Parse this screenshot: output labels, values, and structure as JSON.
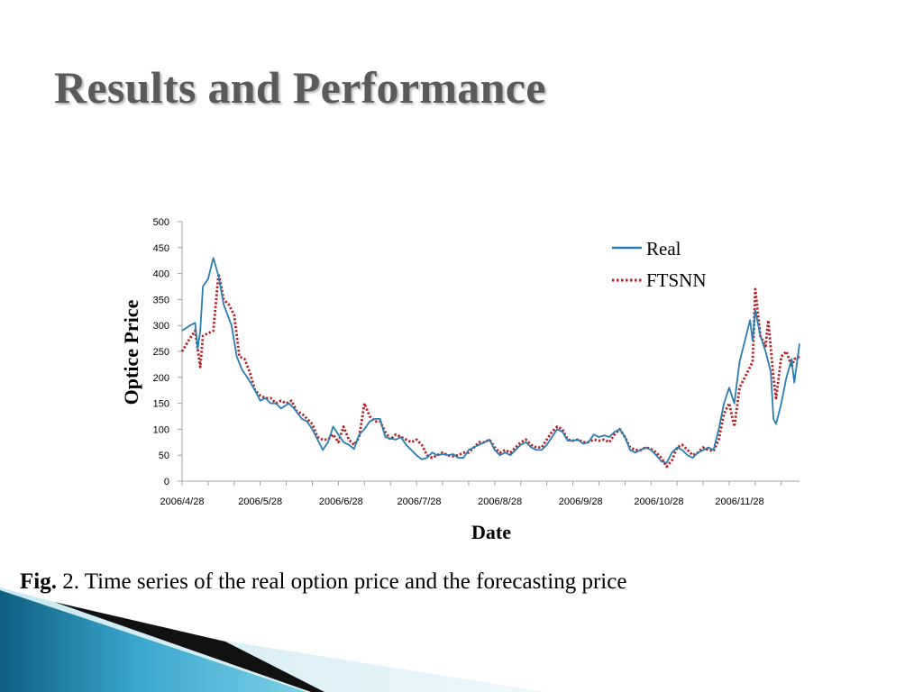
{
  "slide": {
    "title": "Results and Performance",
    "caption": {
      "fig_label": "Fig.",
      "fig_number": " 2.",
      "text": " Time series of the real option price and the forecasting price"
    }
  },
  "colors": {
    "real": "#2a7db0",
    "ftsnn": "#b01e24",
    "title": "#5a5a5a",
    "deco_dark": "#0f6f92",
    "deco_light": "#5cc0dc"
  },
  "chart_data": {
    "type": "line",
    "xlabel": "Date",
    "ylabel": "Optice Price",
    "ylim": [
      0,
      500
    ],
    "yticks": [
      0,
      50,
      100,
      150,
      200,
      250,
      300,
      350,
      400,
      450,
      500
    ],
    "xlim": [
      "2006-04-28",
      "2006-12-21"
    ],
    "x_tick_labels": [
      {
        "label": "2006/4/28",
        "date": "2006-04-28"
      },
      {
        "label": "2006/5/28",
        "date": "2006-05-28"
      },
      {
        "label": "2006/6/28",
        "date": "2006-06-28"
      },
      {
        "label": "2006/7/28",
        "date": "2006-07-28"
      },
      {
        "label": "2006/8/28",
        "date": "2006-08-28"
      },
      {
        "label": "2006/9/28",
        "date": "2006-09-28"
      },
      {
        "label": "2006/10/28",
        "date": "2006-10-28"
      },
      {
        "label": "2006/11/28",
        "date": "2006-11-28"
      }
    ],
    "legend_position": "top-right",
    "grid": false,
    "series": [
      {
        "name": "Real",
        "style": "solid",
        "points": [
          [
            "2006-04-28",
            290
          ],
          [
            "2006-05-01",
            300
          ],
          [
            "2006-05-03",
            305
          ],
          [
            "2006-05-04",
            255
          ],
          [
            "2006-05-05",
            290
          ],
          [
            "2006-05-06",
            375
          ],
          [
            "2006-05-08",
            390
          ],
          [
            "2006-05-10",
            430
          ],
          [
            "2006-05-12",
            395
          ],
          [
            "2006-05-14",
            340
          ],
          [
            "2006-05-17",
            300
          ],
          [
            "2006-05-19",
            240
          ],
          [
            "2006-05-21",
            215
          ],
          [
            "2006-05-23",
            200
          ],
          [
            "2006-05-26",
            175
          ],
          [
            "2006-05-28",
            155
          ],
          [
            "2006-05-30",
            160
          ],
          [
            "2006-06-01",
            150
          ],
          [
            "2006-06-03",
            150
          ],
          [
            "2006-06-05",
            140
          ],
          [
            "2006-06-08",
            150
          ],
          [
            "2006-06-10",
            140
          ],
          [
            "2006-06-13",
            120
          ],
          [
            "2006-06-15",
            115
          ],
          [
            "2006-06-17",
            100
          ],
          [
            "2006-06-19",
            80
          ],
          [
            "2006-06-21",
            60
          ],
          [
            "2006-06-23",
            75
          ],
          [
            "2006-06-25",
            105
          ],
          [
            "2006-06-27",
            90
          ],
          [
            "2006-06-29",
            75
          ],
          [
            "2006-07-01",
            70
          ],
          [
            "2006-07-03",
            62
          ],
          [
            "2006-07-05",
            90
          ],
          [
            "2006-07-07",
            100
          ],
          [
            "2006-07-09",
            115
          ],
          [
            "2006-07-11",
            120
          ],
          [
            "2006-07-13",
            120
          ],
          [
            "2006-07-15",
            85
          ],
          [
            "2006-07-17",
            82
          ],
          [
            "2006-07-19",
            80
          ],
          [
            "2006-07-21",
            85
          ],
          [
            "2006-07-23",
            70
          ],
          [
            "2006-07-25",
            60
          ],
          [
            "2006-07-27",
            50
          ],
          [
            "2006-07-29",
            42
          ],
          [
            "2006-07-31",
            45
          ],
          [
            "2006-08-02",
            55
          ],
          [
            "2006-08-04",
            50
          ],
          [
            "2006-08-06",
            52
          ],
          [
            "2006-08-08",
            50
          ],
          [
            "2006-08-10",
            52
          ],
          [
            "2006-08-12",
            45
          ],
          [
            "2006-08-14",
            45
          ],
          [
            "2006-08-16",
            60
          ],
          [
            "2006-08-18",
            65
          ],
          [
            "2006-08-20",
            70
          ],
          [
            "2006-08-22",
            75
          ],
          [
            "2006-08-24",
            80
          ],
          [
            "2006-08-26",
            60
          ],
          [
            "2006-08-28",
            50
          ],
          [
            "2006-08-30",
            55
          ],
          [
            "2006-09-01",
            50
          ],
          [
            "2006-09-03",
            60
          ],
          [
            "2006-09-05",
            70
          ],
          [
            "2006-09-07",
            75
          ],
          [
            "2006-09-09",
            65
          ],
          [
            "2006-09-11",
            60
          ],
          [
            "2006-09-13",
            60
          ],
          [
            "2006-09-15",
            70
          ],
          [
            "2006-09-17",
            85
          ],
          [
            "2006-09-19",
            100
          ],
          [
            "2006-09-21",
            95
          ],
          [
            "2006-09-23",
            78
          ],
          [
            "2006-09-25",
            78
          ],
          [
            "2006-09-27",
            80
          ],
          [
            "2006-09-29",
            72
          ],
          [
            "2006-10-01",
            75
          ],
          [
            "2006-10-03",
            90
          ],
          [
            "2006-10-05",
            85
          ],
          [
            "2006-10-07",
            88
          ],
          [
            "2006-10-09",
            85
          ],
          [
            "2006-10-11",
            95
          ],
          [
            "2006-10-13",
            100
          ],
          [
            "2006-10-15",
            85
          ],
          [
            "2006-10-17",
            60
          ],
          [
            "2006-10-19",
            55
          ],
          [
            "2006-10-21",
            60
          ],
          [
            "2006-10-23",
            65
          ],
          [
            "2006-10-25",
            60
          ],
          [
            "2006-10-27",
            50
          ],
          [
            "2006-10-29",
            38
          ],
          [
            "2006-10-31",
            35
          ],
          [
            "2006-11-02",
            55
          ],
          [
            "2006-11-04",
            65
          ],
          [
            "2006-11-06",
            60
          ],
          [
            "2006-11-08",
            50
          ],
          [
            "2006-11-10",
            45
          ],
          [
            "2006-11-12",
            55
          ],
          [
            "2006-11-14",
            60
          ],
          [
            "2006-11-16",
            65
          ],
          [
            "2006-11-18",
            60
          ],
          [
            "2006-11-20",
            100
          ],
          [
            "2006-11-22",
            150
          ],
          [
            "2006-11-24",
            180
          ],
          [
            "2006-11-26",
            150
          ],
          [
            "2006-11-28",
            230
          ],
          [
            "2006-11-30",
            270
          ],
          [
            "2006-12-02",
            310
          ],
          [
            "2006-12-03",
            270
          ],
          [
            "2006-12-04",
            330
          ],
          [
            "2006-12-06",
            280
          ],
          [
            "2006-12-08",
            250
          ],
          [
            "2006-12-10",
            210
          ],
          [
            "2006-12-11",
            120
          ],
          [
            "2006-12-12",
            110
          ],
          [
            "2006-12-14",
            150
          ],
          [
            "2006-12-16",
            200
          ],
          [
            "2006-12-18",
            235
          ],
          [
            "2006-12-19",
            190
          ],
          [
            "2006-12-21",
            265
          ]
        ]
      },
      {
        "name": "FTSNN",
        "style": "dotted",
        "points": [
          [
            "2006-04-28",
            250
          ],
          [
            "2006-05-01",
            275
          ],
          [
            "2006-05-03",
            290
          ],
          [
            "2006-05-05",
            220
          ],
          [
            "2006-05-06",
            280
          ],
          [
            "2006-05-08",
            285
          ],
          [
            "2006-05-10",
            290
          ],
          [
            "2006-05-12",
            400
          ],
          [
            "2006-05-14",
            350
          ],
          [
            "2006-05-16",
            340
          ],
          [
            "2006-05-18",
            320
          ],
          [
            "2006-05-20",
            240
          ],
          [
            "2006-05-22",
            235
          ],
          [
            "2006-05-24",
            210
          ],
          [
            "2006-05-26",
            175
          ],
          [
            "2006-05-28",
            165
          ],
          [
            "2006-05-30",
            160
          ],
          [
            "2006-06-01",
            160
          ],
          [
            "2006-06-03",
            150
          ],
          [
            "2006-06-05",
            155
          ],
          [
            "2006-06-07",
            150
          ],
          [
            "2006-06-09",
            155
          ],
          [
            "2006-06-11",
            135
          ],
          [
            "2006-06-13",
            130
          ],
          [
            "2006-06-15",
            120
          ],
          [
            "2006-06-17",
            110
          ],
          [
            "2006-06-19",
            85
          ],
          [
            "2006-06-21",
            80
          ],
          [
            "2006-06-23",
            80
          ],
          [
            "2006-06-25",
            90
          ],
          [
            "2006-06-27",
            75
          ],
          [
            "2006-06-29",
            105
          ],
          [
            "2006-07-01",
            80
          ],
          [
            "2006-07-03",
            70
          ],
          [
            "2006-07-05",
            85
          ],
          [
            "2006-07-07",
            150
          ],
          [
            "2006-07-09",
            125
          ],
          [
            "2006-07-11",
            115
          ],
          [
            "2006-07-13",
            115
          ],
          [
            "2006-07-15",
            95
          ],
          [
            "2006-07-17",
            80
          ],
          [
            "2006-07-19",
            90
          ],
          [
            "2006-07-21",
            85
          ],
          [
            "2006-07-23",
            80
          ],
          [
            "2006-07-25",
            75
          ],
          [
            "2006-07-27",
            80
          ],
          [
            "2006-07-29",
            70
          ],
          [
            "2006-07-31",
            50
          ],
          [
            "2006-08-02",
            45
          ],
          [
            "2006-08-04",
            50
          ],
          [
            "2006-08-06",
            55
          ],
          [
            "2006-08-08",
            50
          ],
          [
            "2006-08-10",
            48
          ],
          [
            "2006-08-12",
            50
          ],
          [
            "2006-08-14",
            55
          ],
          [
            "2006-08-16",
            55
          ],
          [
            "2006-08-18",
            65
          ],
          [
            "2006-08-20",
            75
          ],
          [
            "2006-08-22",
            75
          ],
          [
            "2006-08-24",
            80
          ],
          [
            "2006-08-26",
            65
          ],
          [
            "2006-08-28",
            55
          ],
          [
            "2006-08-30",
            60
          ],
          [
            "2006-09-01",
            55
          ],
          [
            "2006-09-03",
            65
          ],
          [
            "2006-09-05",
            75
          ],
          [
            "2006-09-07",
            80
          ],
          [
            "2006-09-09",
            70
          ],
          [
            "2006-09-11",
            65
          ],
          [
            "2006-09-13",
            65
          ],
          [
            "2006-09-15",
            80
          ],
          [
            "2006-09-17",
            95
          ],
          [
            "2006-09-19",
            105
          ],
          [
            "2006-09-21",
            100
          ],
          [
            "2006-09-23",
            80
          ],
          [
            "2006-09-25",
            78
          ],
          [
            "2006-09-27",
            80
          ],
          [
            "2006-09-29",
            75
          ],
          [
            "2006-10-01",
            75
          ],
          [
            "2006-10-03",
            80
          ],
          [
            "2006-10-05",
            78
          ],
          [
            "2006-10-07",
            80
          ],
          [
            "2006-10-09",
            75
          ],
          [
            "2006-10-11",
            90
          ],
          [
            "2006-10-13",
            100
          ],
          [
            "2006-10-15",
            85
          ],
          [
            "2006-10-17",
            65
          ],
          [
            "2006-10-19",
            60
          ],
          [
            "2006-10-21",
            60
          ],
          [
            "2006-10-23",
            65
          ],
          [
            "2006-10-25",
            62
          ],
          [
            "2006-10-27",
            55
          ],
          [
            "2006-10-29",
            45
          ],
          [
            "2006-10-31",
            28
          ],
          [
            "2006-11-02",
            40
          ],
          [
            "2006-11-04",
            65
          ],
          [
            "2006-11-06",
            70
          ],
          [
            "2006-11-08",
            60
          ],
          [
            "2006-11-10",
            50
          ],
          [
            "2006-11-12",
            55
          ],
          [
            "2006-11-14",
            65
          ],
          [
            "2006-11-16",
            60
          ],
          [
            "2006-11-18",
            58
          ],
          [
            "2006-11-20",
            80
          ],
          [
            "2006-11-22",
            130
          ],
          [
            "2006-11-24",
            150
          ],
          [
            "2006-11-26",
            105
          ],
          [
            "2006-11-28",
            180
          ],
          [
            "2006-11-30",
            200
          ],
          [
            "2006-12-02",
            220
          ],
          [
            "2006-12-03",
            230
          ],
          [
            "2006-12-04",
            370
          ],
          [
            "2006-12-06",
            280
          ],
          [
            "2006-12-08",
            260
          ],
          [
            "2006-12-09",
            310
          ],
          [
            "2006-12-11",
            200
          ],
          [
            "2006-12-12",
            160
          ],
          [
            "2006-12-14",
            240
          ],
          [
            "2006-12-16",
            250
          ],
          [
            "2006-12-18",
            220
          ],
          [
            "2006-12-19",
            235
          ],
          [
            "2006-12-21",
            240
          ]
        ]
      }
    ]
  }
}
